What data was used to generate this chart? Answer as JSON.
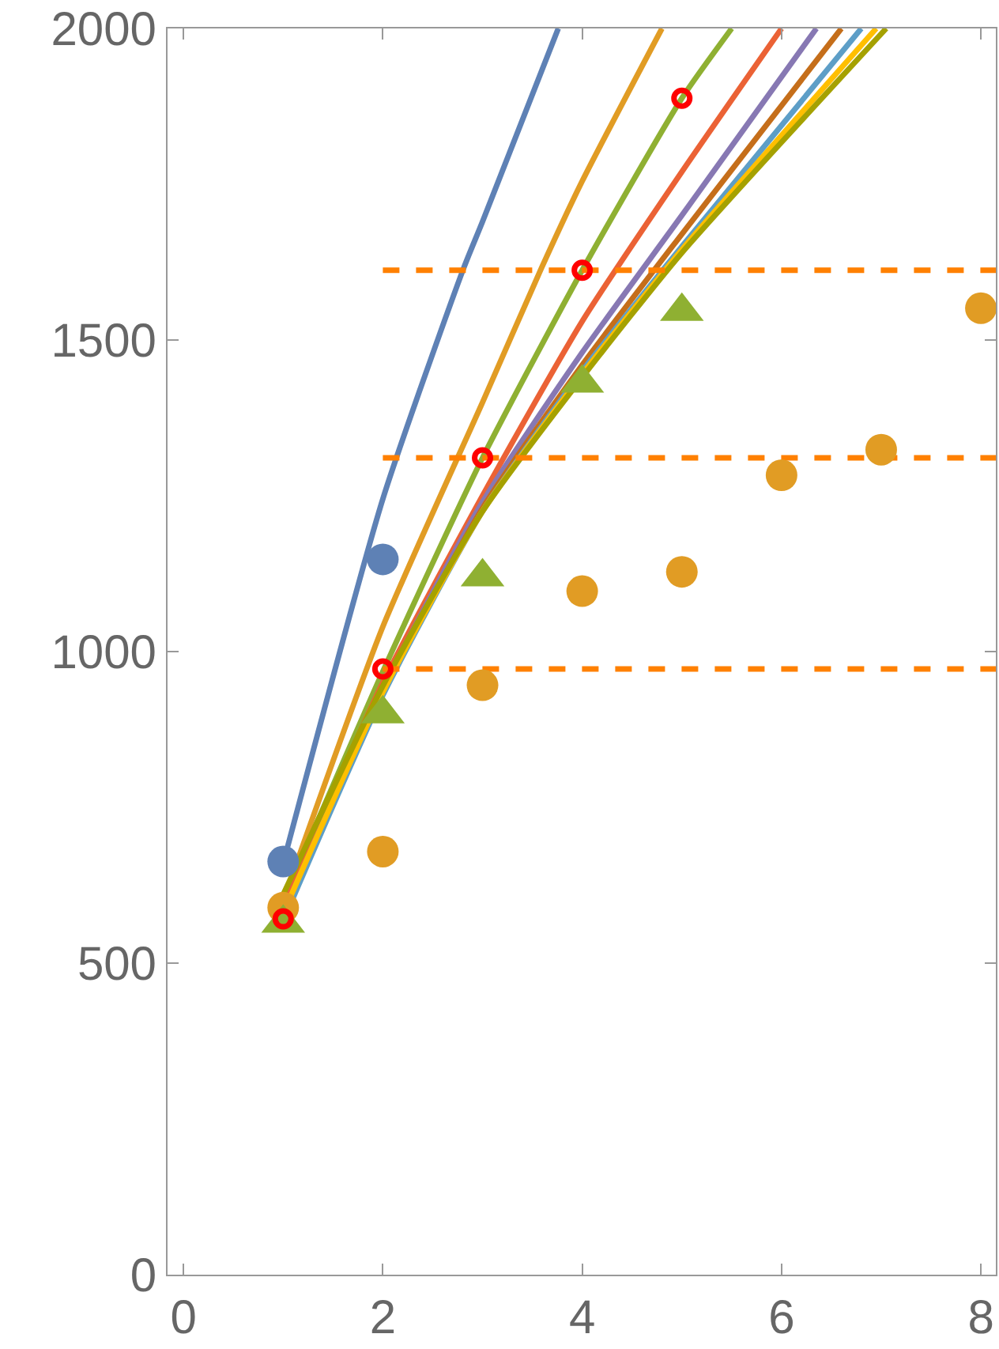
{
  "chart_data": {
    "type": "line",
    "xlim": [
      -0.16,
      8.15
    ],
    "ylim": [
      0,
      2000
    ],
    "xticks": [
      0,
      2,
      4,
      6,
      8
    ],
    "yticks": [
      0,
      500,
      1000,
      1500,
      2000
    ],
    "series": [
      {
        "color": "#5e81b5",
        "x": [
          1,
          2,
          2.81,
          3,
          3.76
        ],
        "values": [
          660,
          1245,
          1615,
          1690,
          2000
        ]
      },
      {
        "color": "#e19c24",
        "x": [
          1,
          2,
          3,
          3.59,
          4,
          4.8
        ],
        "values": [
          600,
          1040,
          1400,
          1615,
          1755,
          2000
        ]
      },
      {
        "color": "#8fb032",
        "x": [
          1,
          2,
          3,
          4,
          5,
          5.5
        ],
        "values": [
          600,
          968,
          1311,
          1612,
          1888,
          2000
        ]
      },
      {
        "color": "#eb6235",
        "x": [
          1,
          2,
          3,
          4,
          5,
          6
        ],
        "values": [
          590,
          950,
          1250,
          1530,
          1770,
          2000
        ]
      },
      {
        "color": "#8778b3",
        "x": [
          1.1,
          2,
          3,
          4,
          5,
          6.35
        ],
        "values": [
          615,
          940,
          1240,
          1480,
          1700,
          2000
        ]
      },
      {
        "color": "#c56e1a",
        "x": [
          1,
          2,
          3,
          4,
          5,
          6.6
        ],
        "values": [
          575,
          935,
          1230,
          1460,
          1670,
          2000
        ]
      },
      {
        "color": "#5d9ec7",
        "x": [
          1.1,
          2,
          3,
          4,
          5,
          6.8
        ],
        "values": [
          605,
          930,
          1225,
          1450,
          1650,
          2000
        ]
      },
      {
        "color": "#ffbf00",
        "x": [
          1,
          2,
          3,
          4,
          5,
          6.95
        ],
        "values": [
          580,
          935,
          1225,
          1445,
          1645,
          2000
        ]
      },
      {
        "color": "#a5a100",
        "x": [
          1,
          2,
          3,
          4,
          5,
          7.05
        ],
        "values": [
          610,
          945,
          1225,
          1440,
          1640,
          2000
        ]
      },
      {
        "color": "#ff8000",
        "line_style": "dashed",
        "x": [
          2,
          8.15
        ],
        "values": [
          972,
          972
        ]
      },
      {
        "color": "#ff8000",
        "line_style": "dashed",
        "x": [
          2,
          8.15
        ],
        "values": [
          1311,
          1311
        ]
      },
      {
        "color": "#ff8000",
        "line_style": "dashed",
        "x": [
          2,
          8.15
        ],
        "values": [
          1612,
          1612
        ]
      },
      {
        "type": "scatter",
        "color": "#5e81b5",
        "marker": "circle",
        "x": [
          1,
          2
        ],
        "values": [
          663,
          1148
        ]
      },
      {
        "type": "scatter",
        "color": "#e19c24",
        "marker": "circle",
        "x": [
          1,
          2,
          3,
          4,
          5,
          6,
          7,
          8
        ],
        "values": [
          589,
          679,
          946,
          1097,
          1128,
          1283,
          1324,
          1551
        ]
      },
      {
        "type": "scatter",
        "color": "#8fb032",
        "marker": "triangle",
        "x": [
          1,
          2,
          3,
          4,
          5
        ],
        "values": [
          564,
          900,
          1120,
          1431,
          1546
        ]
      },
      {
        "type": "scatter",
        "color": "#ff0000",
        "marker": "open circle",
        "x": [
          1,
          2,
          3,
          4,
          5
        ],
        "values": [
          571,
          972,
          1311,
          1612,
          1888
        ]
      }
    ]
  }
}
